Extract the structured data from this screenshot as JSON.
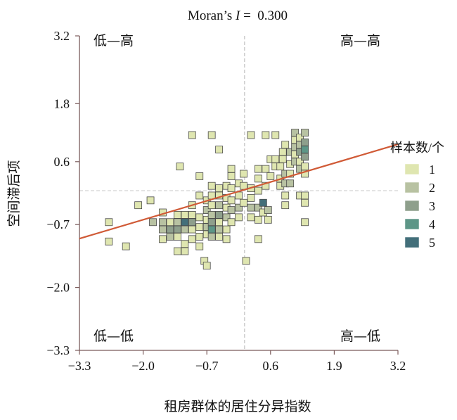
{
  "chart_data": {
    "type": "scatter",
    "title": "Moran’s I = 0.300",
    "title_prefix": "Moran’s ",
    "title_italic": "I",
    "title_value": " =  0.300",
    "xlabel": "租房群体的居住分异指数",
    "ylabel": "空间滞后项",
    "xlim": [
      -3.3,
      3.2
    ],
    "ylim": [
      -3.3,
      3.2
    ],
    "xticks": [
      "-3.3",
      "-2.0",
      "-0.7",
      "0.6",
      "1.9",
      "3.2"
    ],
    "xtick_values": [
      -3.3,
      -2.0,
      -0.7,
      0.6,
      1.9,
      3.2
    ],
    "yticks": [
      "3.2",
      "1.8",
      "0.6",
      "-0.7",
      "-2.0",
      "-3.3"
    ],
    "ytick_values": [
      3.2,
      1.8,
      0.6,
      -0.7,
      -2.0,
      -3.3
    ],
    "quadrants": {
      "top_left": "低—高",
      "top_right": "高—高",
      "bottom_left": "低—低",
      "bottom_right": "高—低"
    },
    "mean_x": 0.07,
    "mean_y": 0.0,
    "regression": {
      "slope": 0.3,
      "intercept": 0.0,
      "color": "#d05a36"
    },
    "legend": {
      "title": "样本数/个",
      "placement": "right",
      "entries": [
        {
          "label": "1",
          "color": "#dfe6b0"
        },
        {
          "label": "2",
          "color": "#b8c2a2"
        },
        {
          "label": "3",
          "color": "#8e9f8c"
        },
        {
          "label": "4",
          "color": "#5d9687"
        },
        {
          "label": "5",
          "color": "#436f7a"
        }
      ]
    },
    "points": [
      {
        "x": -2.7,
        "y": -0.65,
        "n": 1
      },
      {
        "x": -2.7,
        "y": -1.05,
        "n": 1
      },
      {
        "x": -2.35,
        "y": -1.15,
        "n": 1
      },
      {
        "x": -2.1,
        "y": -0.3,
        "n": 1
      },
      {
        "x": -1.85,
        "y": -0.2,
        "n": 1
      },
      {
        "x": -1.8,
        "y": -0.65,
        "n": 2
      },
      {
        "x": -1.6,
        "y": -0.45,
        "n": 1
      },
      {
        "x": -1.6,
        "y": -0.65,
        "n": 2
      },
      {
        "x": -1.6,
        "y": -0.8,
        "n": 2
      },
      {
        "x": -1.6,
        "y": -1.0,
        "n": 1
      },
      {
        "x": -1.45,
        "y": -0.65,
        "n": 1
      },
      {
        "x": -1.45,
        "y": -0.8,
        "n": 3
      },
      {
        "x": -1.45,
        "y": -0.95,
        "n": 2
      },
      {
        "x": -1.3,
        "y": -0.5,
        "n": 1
      },
      {
        "x": -1.3,
        "y": -0.65,
        "n": 2
      },
      {
        "x": -1.3,
        "y": -0.8,
        "n": 3
      },
      {
        "x": -1.3,
        "y": -0.95,
        "n": 1
      },
      {
        "x": -1.3,
        "y": -1.25,
        "n": 1
      },
      {
        "x": -1.25,
        "y": 0.5,
        "n": 1
      },
      {
        "x": -1.15,
        "y": -0.5,
        "n": 1
      },
      {
        "x": -1.15,
        "y": -0.65,
        "n": 5
      },
      {
        "x": -1.15,
        "y": -0.8,
        "n": 2
      },
      {
        "x": -1.15,
        "y": -1.1,
        "n": 1
      },
      {
        "x": -1.15,
        "y": -1.25,
        "n": 1
      },
      {
        "x": -1.0,
        "y": 1.15,
        "n": 1
      },
      {
        "x": -1.0,
        "y": -0.3,
        "n": 1
      },
      {
        "x": -1.0,
        "y": -0.5,
        "n": 1
      },
      {
        "x": -1.0,
        "y": -0.65,
        "n": 3
      },
      {
        "x": -1.0,
        "y": -0.8,
        "n": 1
      },
      {
        "x": -1.0,
        "y": -1.0,
        "n": 1
      },
      {
        "x": -0.85,
        "y": 0.3,
        "n": 1
      },
      {
        "x": -0.85,
        "y": -0.1,
        "n": 1
      },
      {
        "x": -0.85,
        "y": -0.55,
        "n": 1
      },
      {
        "x": -0.85,
        "y": -0.75,
        "n": 1
      },
      {
        "x": -0.85,
        "y": -0.95,
        "n": 1
      },
      {
        "x": -0.85,
        "y": -1.15,
        "n": 1
      },
      {
        "x": -0.75,
        "y": -1.45,
        "n": 1
      },
      {
        "x": -0.7,
        "y": -0.2,
        "n": 1
      },
      {
        "x": -0.7,
        "y": -0.4,
        "n": 2
      },
      {
        "x": -0.7,
        "y": -0.6,
        "n": 1
      },
      {
        "x": -0.7,
        "y": -0.75,
        "n": 2
      },
      {
        "x": -0.7,
        "y": -0.9,
        "n": 1
      },
      {
        "x": -0.7,
        "y": -1.55,
        "n": 1
      },
      {
        "x": -0.6,
        "y": 1.15,
        "n": 1
      },
      {
        "x": -0.6,
        "y": 0.1,
        "n": 1
      },
      {
        "x": -0.6,
        "y": -0.1,
        "n": 1
      },
      {
        "x": -0.6,
        "y": -0.3,
        "n": 1
      },
      {
        "x": -0.6,
        "y": -0.5,
        "n": 2
      },
      {
        "x": -0.6,
        "y": -0.65,
        "n": 3
      },
      {
        "x": -0.6,
        "y": -0.8,
        "n": 4
      },
      {
        "x": -0.6,
        "y": -0.95,
        "n": 2
      },
      {
        "x": -0.45,
        "y": 0.85,
        "n": 1
      },
      {
        "x": -0.45,
        "y": 0.05,
        "n": 1
      },
      {
        "x": -0.45,
        "y": -0.1,
        "n": 1
      },
      {
        "x": -0.45,
        "y": -0.3,
        "n": 2
      },
      {
        "x": -0.45,
        "y": -0.5,
        "n": 3
      },
      {
        "x": -0.45,
        "y": -0.65,
        "n": 1
      },
      {
        "x": -0.45,
        "y": -0.8,
        "n": 2
      },
      {
        "x": -0.45,
        "y": -0.95,
        "n": 1
      },
      {
        "x": -0.3,
        "y": 0.1,
        "n": 1
      },
      {
        "x": -0.3,
        "y": -0.15,
        "n": 1
      },
      {
        "x": -0.3,
        "y": -0.35,
        "n": 1
      },
      {
        "x": -0.3,
        "y": -0.55,
        "n": 2
      },
      {
        "x": -0.3,
        "y": -0.8,
        "n": 1
      },
      {
        "x": -0.3,
        "y": -1.0,
        "n": 1
      },
      {
        "x": -0.2,
        "y": 0.45,
        "n": 1
      },
      {
        "x": -0.2,
        "y": 0.3,
        "n": 1
      },
      {
        "x": -0.2,
        "y": 0.05,
        "n": 1
      },
      {
        "x": -0.2,
        "y": -0.2,
        "n": 1
      },
      {
        "x": -0.2,
        "y": -0.4,
        "n": 2
      },
      {
        "x": -0.2,
        "y": -0.65,
        "n": 1
      },
      {
        "x": -0.05,
        "y": 0.15,
        "n": 1
      },
      {
        "x": -0.05,
        "y": -0.1,
        "n": 1
      },
      {
        "x": -0.05,
        "y": -0.35,
        "n": 2
      },
      {
        "x": -0.05,
        "y": -0.55,
        "n": 1
      },
      {
        "x": 0.05,
        "y": 0.35,
        "n": 1
      },
      {
        "x": 0.05,
        "y": 0.1,
        "n": 1
      },
      {
        "x": 0.05,
        "y": -0.25,
        "n": 1
      },
      {
        "x": 0.1,
        "y": -1.45,
        "n": 1
      },
      {
        "x": 0.2,
        "y": 1.15,
        "n": 1
      },
      {
        "x": 0.2,
        "y": 0.05,
        "n": 1
      },
      {
        "x": 0.2,
        "y": -0.15,
        "n": 1
      },
      {
        "x": 0.2,
        "y": -0.35,
        "n": 2
      },
      {
        "x": 0.2,
        "y": -0.55,
        "n": 1
      },
      {
        "x": 0.35,
        "y": 0.45,
        "n": 1
      },
      {
        "x": 0.35,
        "y": 0.25,
        "n": 1
      },
      {
        "x": 0.35,
        "y": 0.0,
        "n": 1
      },
      {
        "x": 0.35,
        "y": -0.35,
        "n": 2
      },
      {
        "x": 0.35,
        "y": -0.6,
        "n": 1
      },
      {
        "x": 0.35,
        "y": -1.0,
        "n": 1
      },
      {
        "x": 0.45,
        "y": -0.25,
        "n": 5
      },
      {
        "x": 0.45,
        "y": -0.45,
        "n": 1
      },
      {
        "x": 0.5,
        "y": 1.15,
        "n": 1
      },
      {
        "x": 0.5,
        "y": 0.45,
        "n": 1
      },
      {
        "x": 0.5,
        "y": 0.1,
        "n": 1
      },
      {
        "x": 0.55,
        "y": -0.4,
        "n": 2
      },
      {
        "x": 0.55,
        "y": -0.6,
        "n": 1
      },
      {
        "x": 0.6,
        "y": 0.65,
        "n": 1
      },
      {
        "x": 0.6,
        "y": 0.3,
        "n": 1
      },
      {
        "x": 0.7,
        "y": 1.15,
        "n": 1
      },
      {
        "x": 0.7,
        "y": 0.65,
        "n": 1
      },
      {
        "x": 0.7,
        "y": 0.5,
        "n": 1
      },
      {
        "x": 0.8,
        "y": 0.5,
        "n": 1
      },
      {
        "x": 0.8,
        "y": 0.25,
        "n": 1
      },
      {
        "x": 0.8,
        "y": 0.1,
        "n": 1
      },
      {
        "x": 0.85,
        "y": 0.8,
        "n": 1
      },
      {
        "x": 0.85,
        "y": 0.65,
        "n": 1
      },
      {
        "x": 0.9,
        "y": 0.95,
        "n": 1
      },
      {
        "x": 0.9,
        "y": 0.35,
        "n": 2
      },
      {
        "x": 0.9,
        "y": 0.15,
        "n": 2
      },
      {
        "x": 0.9,
        "y": -0.1,
        "n": 1
      },
      {
        "x": 0.9,
        "y": -0.3,
        "n": 1
      },
      {
        "x": 1.0,
        "y": 0.8,
        "n": 2
      },
      {
        "x": 1.0,
        "y": 0.55,
        "n": 1
      },
      {
        "x": 1.0,
        "y": 0.35,
        "n": 1
      },
      {
        "x": 1.0,
        "y": 0.15,
        "n": 2
      },
      {
        "x": 1.1,
        "y": 1.2,
        "n": 2
      },
      {
        "x": 1.1,
        "y": 1.05,
        "n": 1
      },
      {
        "x": 1.1,
        "y": 0.9,
        "n": 2
      },
      {
        "x": 1.1,
        "y": 0.75,
        "n": 1
      },
      {
        "x": 1.1,
        "y": 0.6,
        "n": 2
      },
      {
        "x": 1.2,
        "y": 1.1,
        "n": 1
      },
      {
        "x": 1.2,
        "y": 0.95,
        "n": 2
      },
      {
        "x": 1.2,
        "y": 0.8,
        "n": 3
      },
      {
        "x": 1.2,
        "y": 0.6,
        "n": 1
      },
      {
        "x": 1.2,
        "y": 0.45,
        "n": 2
      },
      {
        "x": 1.2,
        "y": -0.1,
        "n": 1
      },
      {
        "x": 1.3,
        "y": 1.2,
        "n": 2
      },
      {
        "x": 1.3,
        "y": 1.0,
        "n": 3
      },
      {
        "x": 1.3,
        "y": 0.85,
        "n": 4
      },
      {
        "x": 1.3,
        "y": 0.7,
        "n": 3
      },
      {
        "x": 1.3,
        "y": 0.5,
        "n": 1
      },
      {
        "x": 1.3,
        "y": 0.35,
        "n": 1
      },
      {
        "x": 1.3,
        "y": -0.1,
        "n": 1
      },
      {
        "x": 1.3,
        "y": -0.25,
        "n": 1
      },
      {
        "x": 1.3,
        "y": -0.65,
        "n": 1
      }
    ]
  }
}
